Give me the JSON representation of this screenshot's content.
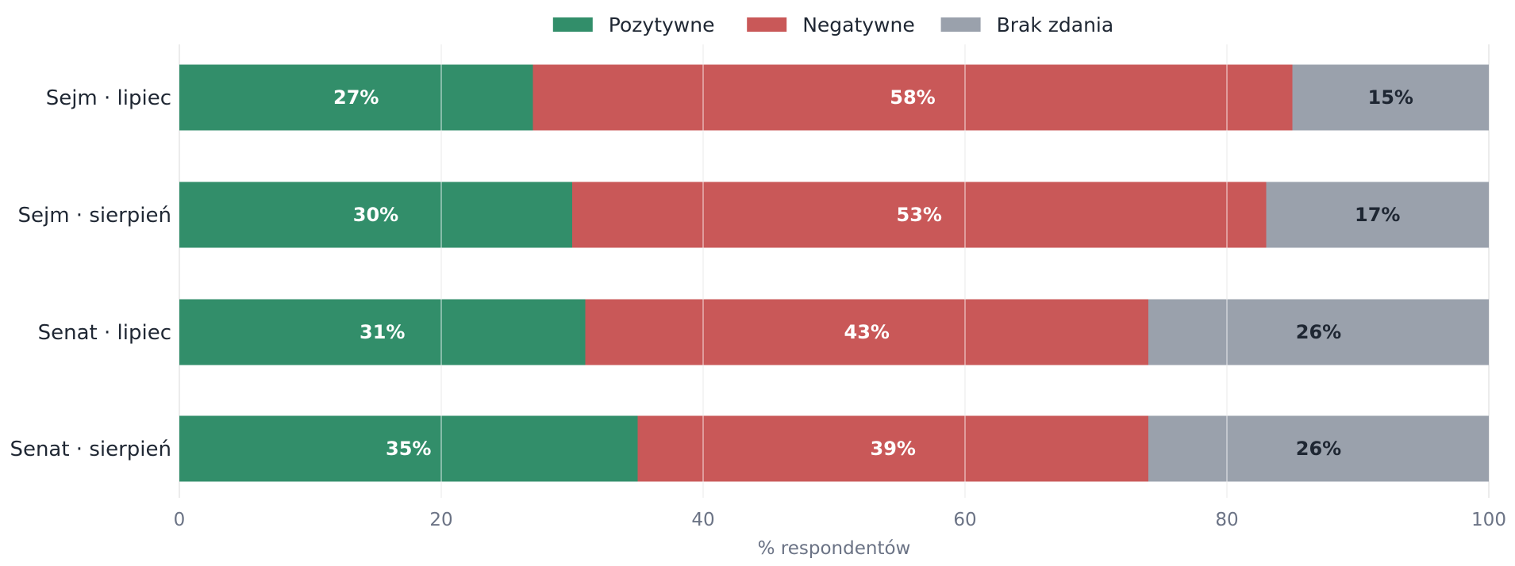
{
  "chart_data": {
    "type": "bar",
    "orientation": "horizontal",
    "stacked": true,
    "categories": [
      "Sejm · lipiec",
      "Sejm · sierpień",
      "Senat · lipiec",
      "Senat · sierpień"
    ],
    "series": [
      {
        "name": "Pozytywne",
        "values": [
          27,
          30,
          31,
          35
        ],
        "color": "#328e6a",
        "label_color": "#ffffff"
      },
      {
        "name": "Negatywne",
        "values": [
          58,
          53,
          43,
          39
        ],
        "color": "#c95858",
        "label_color": "#ffffff"
      },
      {
        "name": "Brak zdania",
        "values": [
          15,
          17,
          26,
          26
        ],
        "color": "#9aa1ac",
        "label_color": "#1f2733"
      }
    ],
    "data_labels": [
      [
        "27%",
        "30%",
        "31%",
        "35%"
      ],
      [
        "58%",
        "53%",
        "43%",
        "39%"
      ],
      [
        "15%",
        "17%",
        "26%",
        "26%"
      ]
    ],
    "xlabel": "% respondentów",
    "xlim": [
      0,
      100
    ],
    "xticks": [
      0,
      20,
      40,
      60,
      80,
      100
    ],
    "xtick_labels": [
      "0",
      "20",
      "40",
      "60",
      "80",
      "100"
    ],
    "grid": true,
    "legend_position": "top-center"
  }
}
